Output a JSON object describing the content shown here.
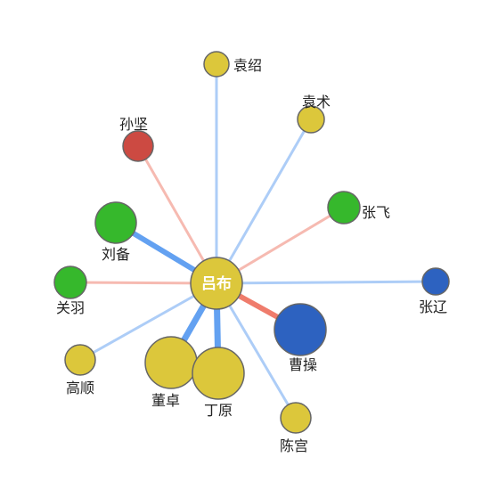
{
  "graph": {
    "center": {
      "label": "吕布",
      "color": "#dcc73b"
    },
    "nodes": [
      {
        "id": "yuanshao",
        "label": "袁绍",
        "color": "#dcc73b",
        "link": "blue",
        "strength": 1
      },
      {
        "id": "yuanshu",
        "label": "袁术",
        "color": "#dcc73b",
        "link": "blue",
        "strength": 1
      },
      {
        "id": "sunjian",
        "label": "孙坚",
        "color": "#cc4a42",
        "link": "red",
        "strength": 1
      },
      {
        "id": "zhangfei",
        "label": "张飞",
        "color": "#36b82c",
        "link": "red",
        "strength": 1
      },
      {
        "id": "liubei",
        "label": "刘备",
        "color": "#36b82c",
        "link": "blue",
        "strength": 3
      },
      {
        "id": "guanyu",
        "label": "关羽",
        "color": "#36b82c",
        "link": "red",
        "strength": 1
      },
      {
        "id": "zhangliao",
        "label": "张辽",
        "color": "#2d62c0",
        "link": "blue",
        "strength": 1
      },
      {
        "id": "caocao",
        "label": "曹操",
        "color": "#2d62c0",
        "link": "red",
        "strength": 3
      },
      {
        "id": "gaoshun",
        "label": "高顺",
        "color": "#dcc73b",
        "link": "blue",
        "strength": 1
      },
      {
        "id": "dongzhuo",
        "label": "董卓",
        "color": "#dcc73b",
        "link": "blue",
        "strength": 4
      },
      {
        "id": "dingyuan",
        "label": "丁原",
        "color": "#dcc73b",
        "link": "blue",
        "strength": 4
      },
      {
        "id": "chengong",
        "label": "陈宫",
        "color": "#dcc73b",
        "link": "blue",
        "strength": 1
      }
    ],
    "link_colors": {
      "blue": "#5b9cf0",
      "red": "#ee7564"
    }
  }
}
